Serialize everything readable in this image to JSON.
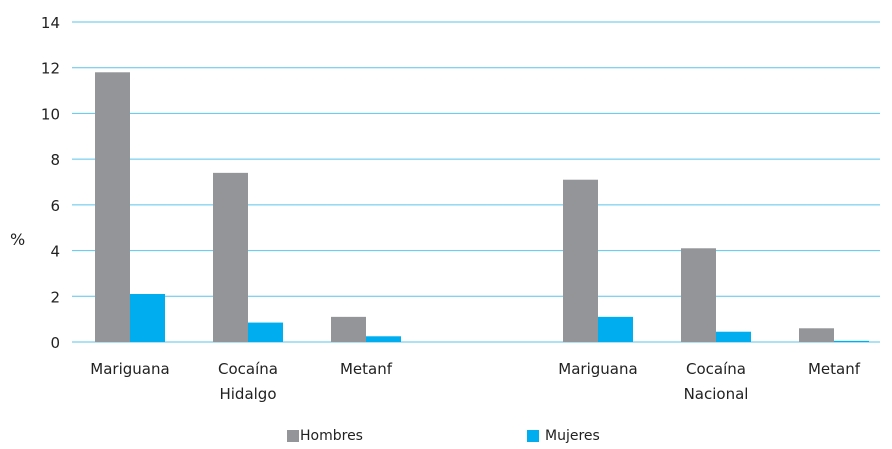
{
  "chart_data": {
    "type": "bar",
    "ylabel": "%",
    "ylim": [
      0,
      14
    ],
    "yticks": [
      0,
      2,
      4,
      6,
      8,
      10,
      12,
      14
    ],
    "grid": true,
    "legend_position": "bottom",
    "groups": [
      {
        "name": "Hidalgo",
        "categories": [
          "Mariguana",
          "Cocaína",
          "Metanf"
        ],
        "series": [
          {
            "name": "Hombres",
            "values": [
              11.8,
              7.4,
              1.1
            ]
          },
          {
            "name": "Mujeres",
            "values": [
              2.1,
              0.85,
              0.25
            ]
          }
        ]
      },
      {
        "name": "Nacional",
        "categories": [
          "Mariguana",
          "Cocaína",
          "Metanf"
        ],
        "series": [
          {
            "name": "Hombres",
            "values": [
              7.1,
              4.1,
              0.6
            ]
          },
          {
            "name": "Mujeres",
            "values": [
              1.1,
              0.45,
              0.05
            ]
          }
        ]
      }
    ],
    "legend": [
      "Hombres",
      "Mujeres"
    ],
    "colors": {
      "Hombres": "#939598",
      "Mujeres": "#00aeef",
      "grid": "#5bc4ea"
    }
  }
}
